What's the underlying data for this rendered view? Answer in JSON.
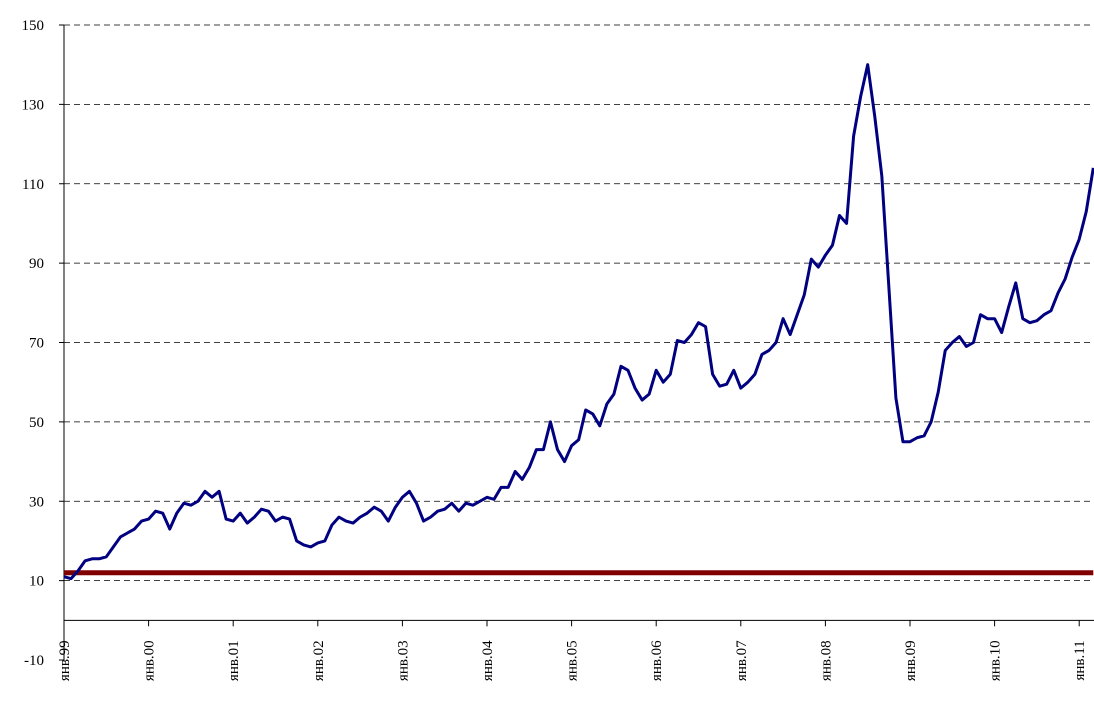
{
  "chart_data": {
    "type": "line",
    "categories": [
      "янв.99",
      null,
      null,
      null,
      null,
      null,
      null,
      null,
      null,
      null,
      null,
      null,
      "янв.00",
      null,
      null,
      null,
      null,
      null,
      null,
      null,
      null,
      null,
      null,
      null,
      "янв.01",
      null,
      null,
      null,
      null,
      null,
      null,
      null,
      null,
      null,
      null,
      null,
      "янв.02",
      null,
      null,
      null,
      null,
      null,
      null,
      null,
      null,
      null,
      null,
      null,
      "янв.03",
      null,
      null,
      null,
      null,
      null,
      null,
      null,
      null,
      null,
      null,
      null,
      "янв.04",
      null,
      null,
      null,
      null,
      null,
      null,
      null,
      null,
      null,
      null,
      null,
      "янв.05",
      null,
      null,
      null,
      null,
      null,
      null,
      null,
      null,
      null,
      null,
      null,
      "янв.06",
      null,
      null,
      null,
      null,
      null,
      null,
      null,
      null,
      null,
      null,
      null,
      "янв.07",
      null,
      null,
      null,
      null,
      null,
      null,
      null,
      null,
      null,
      null,
      null,
      "янв.08",
      null,
      null,
      null,
      null,
      null,
      null,
      null,
      null,
      null,
      null,
      null,
      "янв.09",
      null,
      null,
      null,
      null,
      null,
      null,
      null,
      null,
      null,
      null,
      null,
      "янв.10",
      null,
      null,
      null,
      null,
      null,
      null,
      null,
      null,
      null,
      null,
      null,
      "янв.11",
      null,
      null
    ],
    "series": [
      {
        "color": "#000080",
        "values": [
          11,
          10.5,
          12.5,
          15,
          15.5,
          15.5,
          16,
          18.5,
          21,
          22,
          23,
          25,
          25.5,
          27.5,
          27,
          23,
          27,
          29.5,
          29,
          30,
          32.5,
          31,
          32.5,
          25.5,
          25,
          27,
          24.5,
          26,
          28,
          27.5,
          25,
          26,
          25.5,
          20,
          19,
          18.5,
          19.5,
          20,
          24,
          26,
          25,
          24.5,
          26,
          27,
          28.5,
          27.5,
          25,
          28.5,
          31,
          32.5,
          29.5,
          25,
          26,
          27.5,
          28,
          29.5,
          27.5,
          29.5,
          29,
          30,
          31,
          30.5,
          33.5,
          33.5,
          37.5,
          35.5,
          38.5,
          43,
          43,
          50,
          43,
          40,
          44,
          45.5,
          53,
          52,
          49,
          54.5,
          57,
          64,
          63,
          58.5,
          55.5,
          57,
          63,
          60,
          62,
          70.5,
          70,
          72,
          75,
          74,
          62,
          59,
          59.5,
          63,
          58.5,
          60,
          62,
          67,
          68,
          70,
          76,
          72,
          77,
          82,
          91,
          89,
          92,
          94.5,
          102,
          100,
          122,
          132,
          140,
          127,
          112,
          84,
          56,
          45,
          45,
          46,
          46.5,
          50,
          57.5,
          68,
          70,
          71.5,
          69,
          70,
          77,
          76,
          76,
          72.5,
          79,
          85,
          76,
          75,
          75.5,
          77,
          78,
          82.5,
          86,
          91.5,
          96,
          103,
          114
        ]
      },
      {
        "color": "#800000",
        "values": [
          12,
          12,
          12,
          12,
          12,
          12,
          12,
          12,
          12,
          12,
          12,
          12,
          12,
          12,
          12,
          12,
          12,
          12,
          12,
          12,
          12,
          12,
          12,
          12,
          12,
          12,
          12,
          12,
          12,
          12,
          12,
          12,
          12,
          12,
          12,
          12,
          12,
          12,
          12,
          12,
          12,
          12,
          12,
          12,
          12,
          12,
          12,
          12,
          12,
          12,
          12,
          12,
          12,
          12,
          12,
          12,
          12,
          12,
          12,
          12,
          12,
          12,
          12,
          12,
          12,
          12,
          12,
          12,
          12,
          12,
          12,
          12,
          12,
          12,
          12,
          12,
          12,
          12,
          12,
          12,
          12,
          12,
          12,
          12,
          12,
          12,
          12,
          12,
          12,
          12,
          12,
          12,
          12,
          12,
          12,
          12,
          12,
          12,
          12,
          12,
          12,
          12,
          12,
          12,
          12,
          12,
          12,
          12,
          12,
          12,
          12,
          12,
          12,
          12,
          12,
          12,
          12,
          12,
          12,
          12,
          12,
          12,
          12,
          12,
          12,
          12,
          12,
          12,
          12,
          12,
          12,
          12,
          12,
          12,
          12,
          12,
          12,
          12,
          12,
          12,
          12,
          12,
          12,
          12,
          12,
          12,
          12
        ]
      }
    ],
    "ylim": [
      -10,
      150
    ],
    "yticks": [
      -10,
      10,
      30,
      50,
      70,
      90,
      110,
      130,
      150
    ],
    "grid": true
  }
}
